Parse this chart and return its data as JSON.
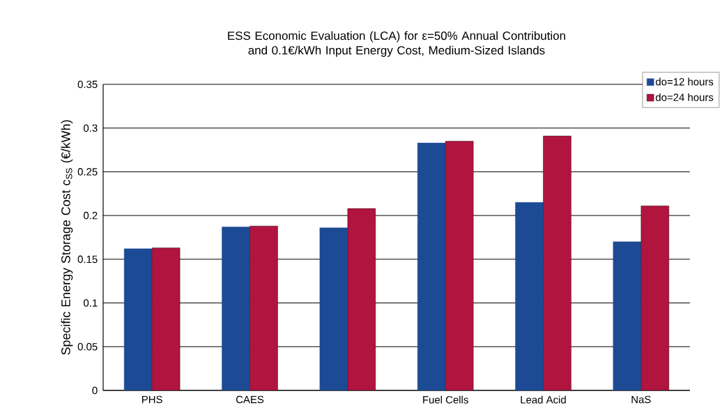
{
  "chart_data": {
    "type": "bar",
    "title": "ESS Economic Evaluation (LCA) for ε=50% Annual Contribution and 0.1€/kWh Input Energy Cost, Medium-Sized Islands",
    "ylabel": "Specific Energy Storage Cost c$_{SS}$ (€/kWh)",
    "categories": [
      "PHS",
      "CAES",
      null,
      "Fuel Cells",
      "Lead Acid",
      "NaS"
    ],
    "series": [
      {
        "name": "do=12 hours",
        "color": "#1d4a94",
        "values": [
          0.162,
          0.187,
          0.186,
          0.283,
          0.215,
          0.17
        ]
      },
      {
        "name": "do=24 hours",
        "color": "#b0143f",
        "values": [
          0.163,
          0.188,
          0.208,
          0.285,
          0.291,
          0.211
        ]
      }
    ],
    "ylim": [
      0,
      0.35
    ],
    "yticks": [
      0,
      0.05,
      0.1,
      0.15,
      0.2,
      0.25,
      0.3,
      0.35
    ],
    "grid": "y",
    "legend": "top right"
  }
}
